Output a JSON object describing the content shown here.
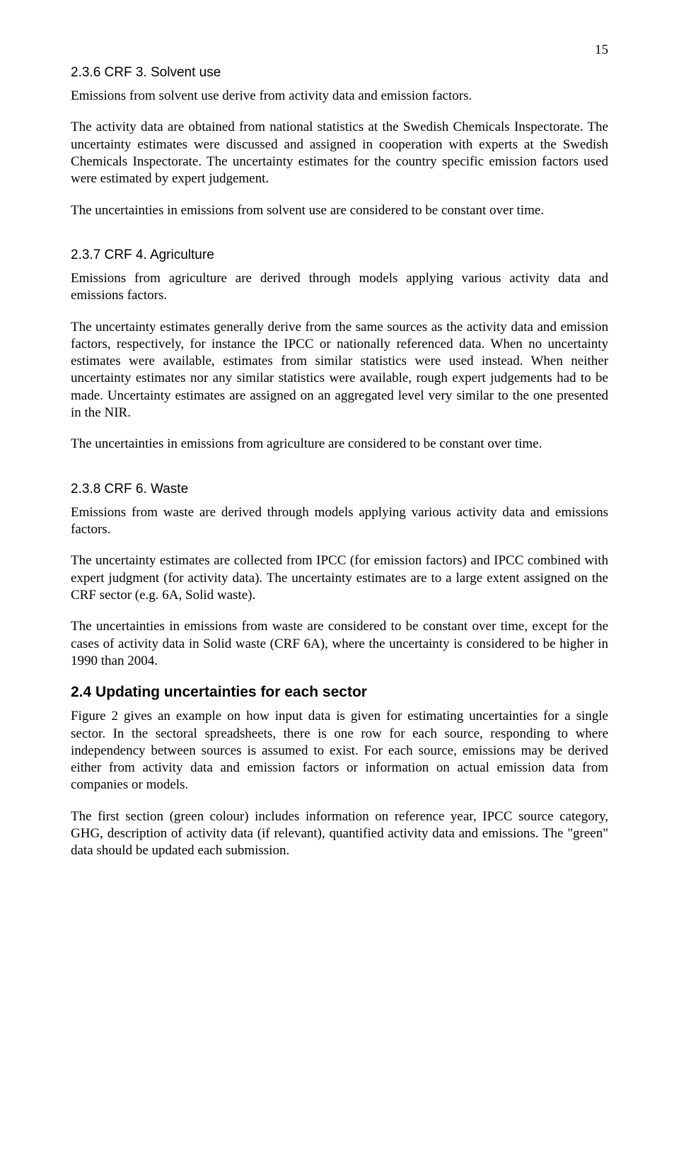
{
  "page_number": "15",
  "sections": {
    "s1": {
      "heading": "2.3.6   CRF 3. Solvent use",
      "p1": "Emissions from solvent use derive from activity data and emission factors.",
      "p2": "The activity data are obtained from national statistics at the Swedish Chemicals Inspectorate. The uncertainty estimates were discussed and assigned in cooperation with experts at the Swedish Chemicals Inspectorate. The uncertainty estimates for the country specific emission factors used were estimated by expert judgement.",
      "p3": "The uncertainties in emissions from solvent use are considered to be constant over time."
    },
    "s2": {
      "heading": "2.3.7   CRF 4. Agriculture",
      "p1": "Emissions from agriculture are derived through models applying various activity data and emissions factors.",
      "p2": "The uncertainty estimates generally derive from the same sources as the activity data and emission factors, respectively, for instance the IPCC or nationally referenced data. When no uncertainty estimates were available, estimates from similar statistics were used instead. When neither uncertainty estimates nor any similar statistics were available, rough expert judgements had to be made. Uncertainty estimates are assigned on an aggregated level very similar to the one presented in the NIR.",
      "p3": "The uncertainties in emissions from agriculture are considered to be constant over time."
    },
    "s3": {
      "heading": "2.3.8   CRF 6. Waste",
      "p1": "Emissions from waste are derived through models applying various activity data and emissions factors.",
      "p2": "The uncertainty estimates are collected from IPCC (for emission factors) and IPCC combined with expert judgment (for activity data). The uncertainty estimates are to a large extent assigned on the CRF sector (e.g. 6A, Solid waste).",
      "p3": "The uncertainties in emissions from waste are considered to be constant over time, except for the cases of activity data in Solid waste (CRF 6A), where the uncertainty is considered to be higher in 1990 than 2004."
    },
    "s4": {
      "heading": "2.4    Updating uncertainties for each sector",
      "p1": "Figure 2 gives an example on how input data is given for estimating uncertainties for a single sector. In the sectoral spreadsheets, there is one row for each source, responding to where independency between sources is assumed to exist. For each source, emissions may be derived either from activity data and emission factors or information on actual emission data from companies or models.",
      "p2": "The first section (green colour) includes information on reference year, IPCC source category, GHG, description of activity data (if relevant), quantified activity data and emissions.  The \"green\" data should be updated each submission."
    }
  }
}
